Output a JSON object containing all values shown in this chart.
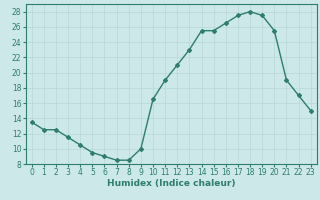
{
  "x": [
    0,
    1,
    2,
    3,
    4,
    5,
    6,
    7,
    8,
    9,
    10,
    11,
    12,
    13,
    14,
    15,
    16,
    17,
    18,
    19,
    20,
    21,
    22,
    23
  ],
  "y": [
    13.5,
    12.5,
    12.5,
    11.5,
    10.5,
    9.5,
    9.0,
    8.5,
    8.5,
    10.0,
    16.5,
    19.0,
    21.0,
    23.0,
    25.5,
    25.5,
    26.5,
    27.5,
    28.0,
    27.5,
    25.5,
    19.0,
    17.0,
    15.0
  ],
  "line_color": "#2e7d6e",
  "marker": "D",
  "marker_size": 2,
  "bg_color": "#cce8e8",
  "grid_color": "#b8d8d8",
  "xlabel": "Humidex (Indice chaleur)",
  "ylabel": "",
  "xlim": [
    -0.5,
    23.5
  ],
  "ylim": [
    8,
    29
  ],
  "yticks": [
    8,
    10,
    12,
    14,
    16,
    18,
    20,
    22,
    24,
    26,
    28
  ],
  "xticks": [
    0,
    1,
    2,
    3,
    4,
    5,
    6,
    7,
    8,
    9,
    10,
    11,
    12,
    13,
    14,
    15,
    16,
    17,
    18,
    19,
    20,
    21,
    22,
    23
  ],
  "xlabel_fontsize": 6.5,
  "tick_fontsize": 5.5,
  "line_width": 1.0
}
